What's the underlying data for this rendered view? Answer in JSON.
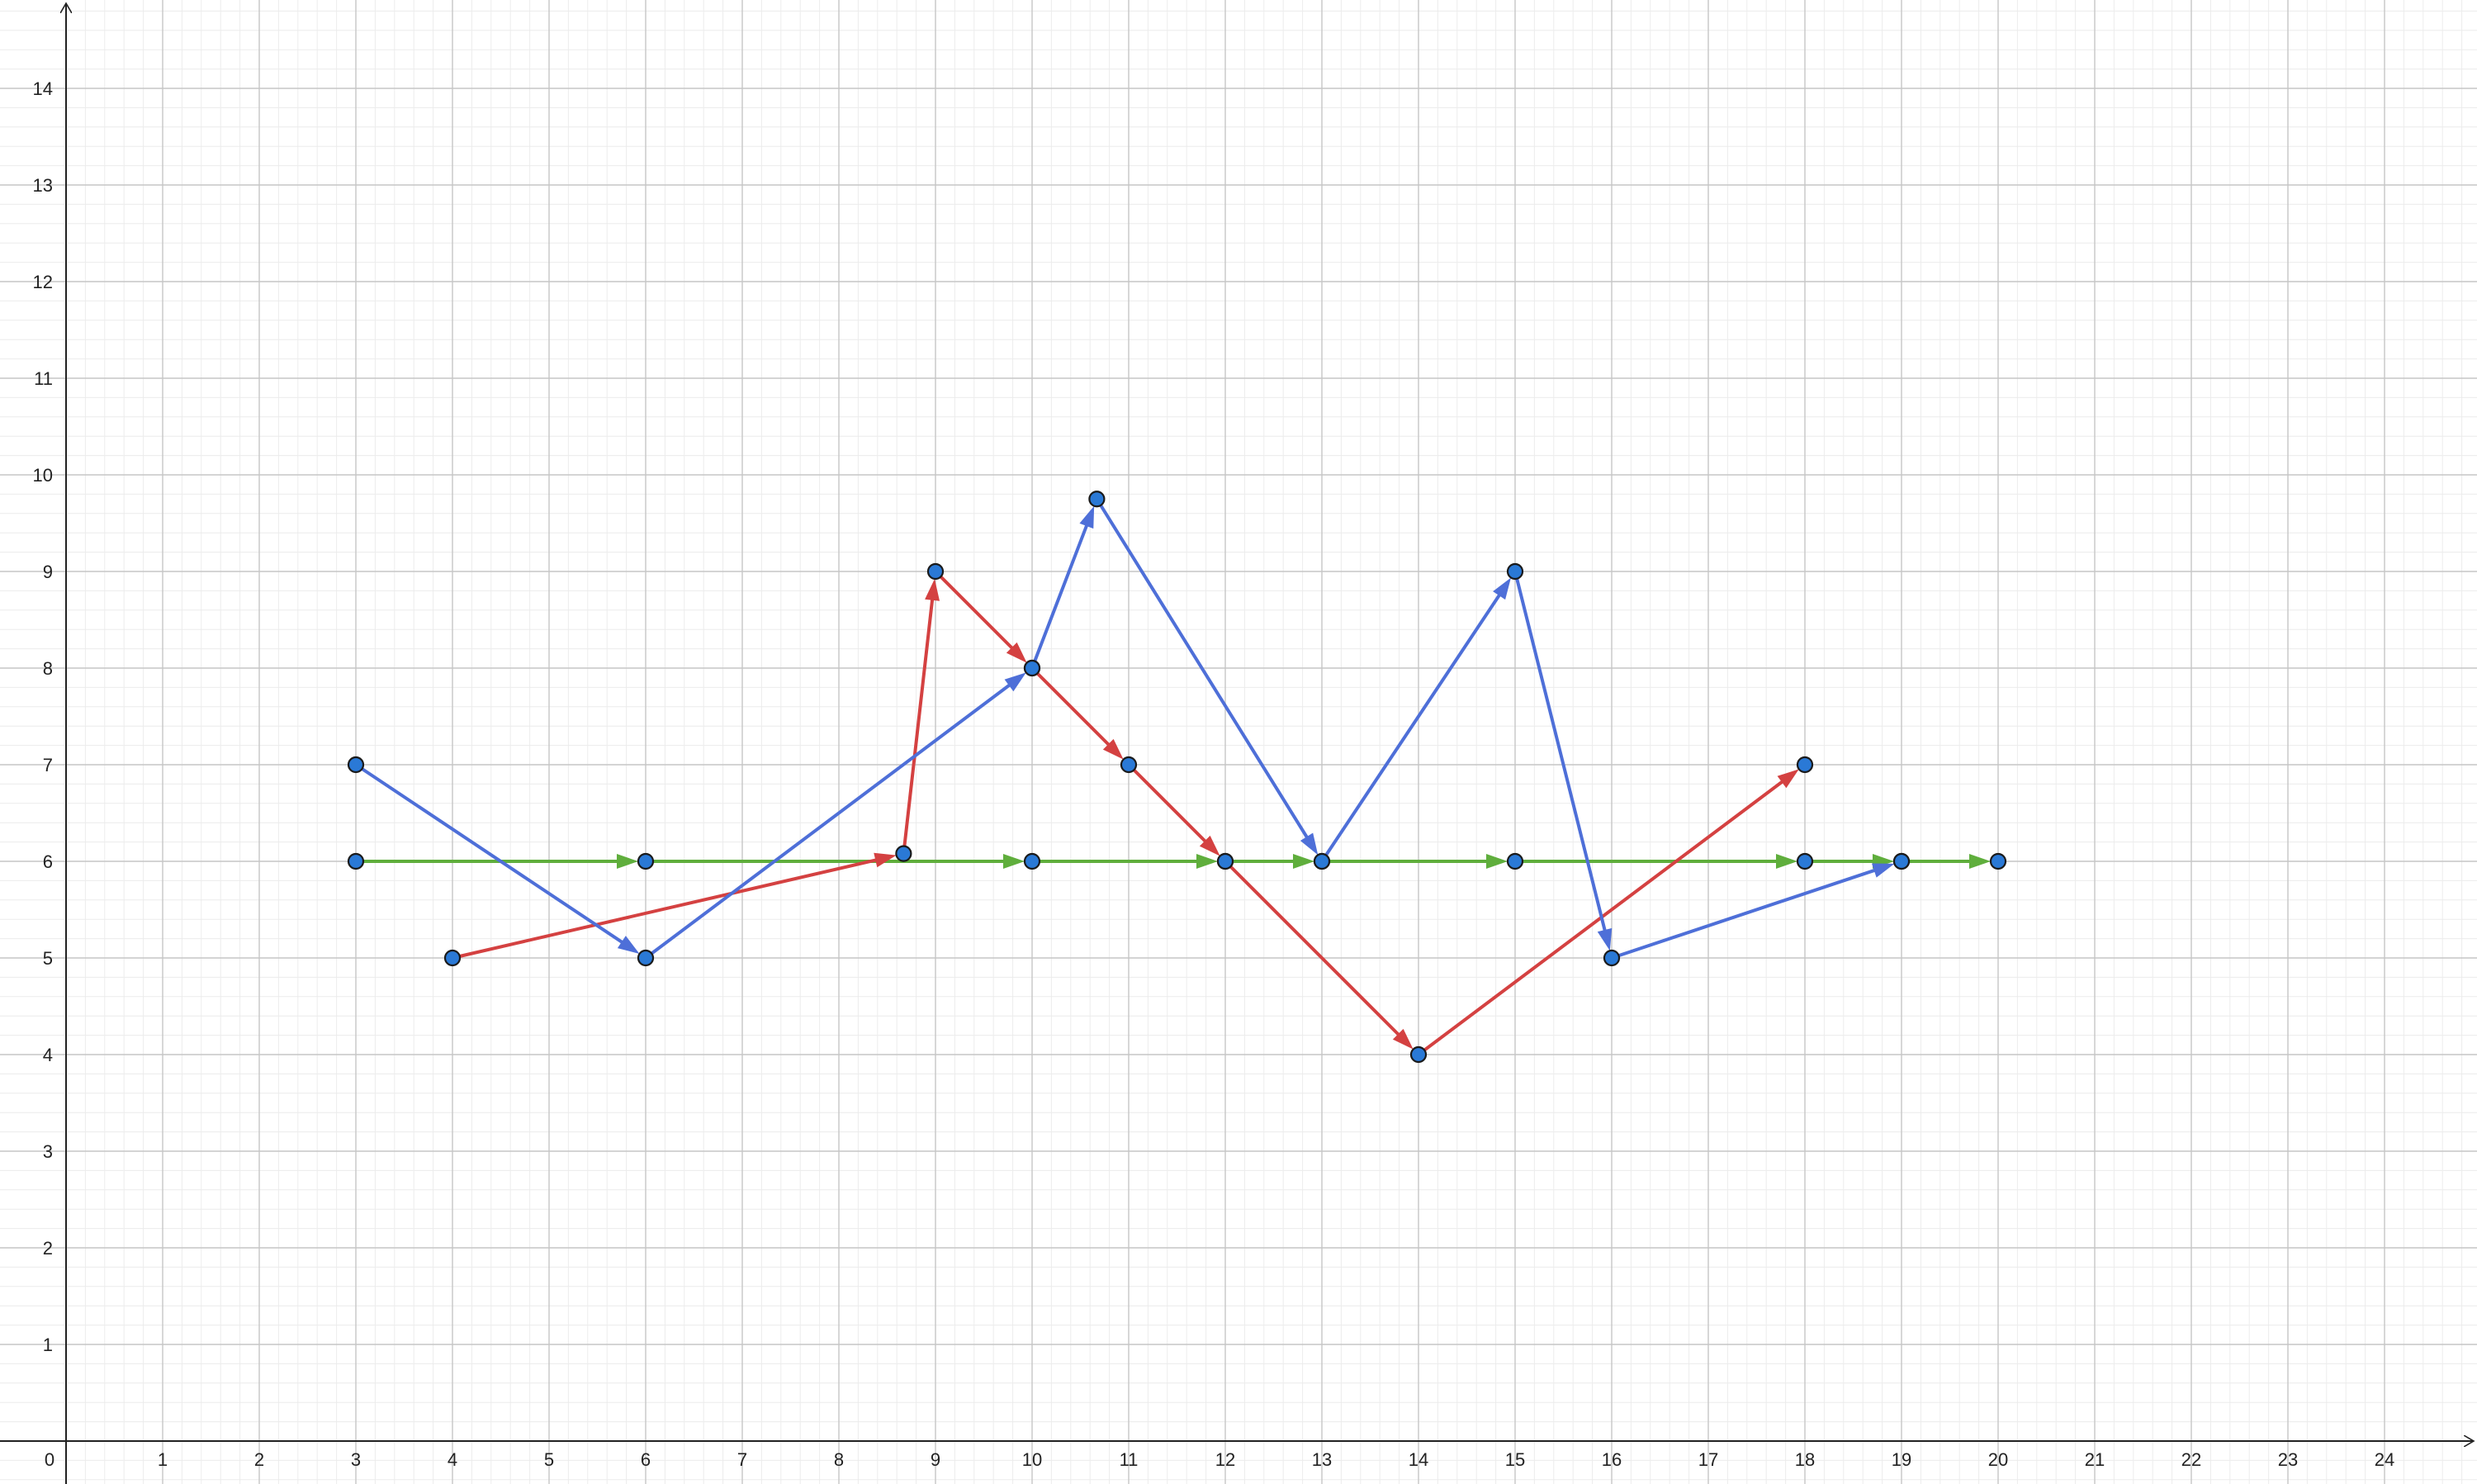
{
  "chart_data": {
    "type": "line",
    "title": "",
    "xlabel": "",
    "ylabel": "",
    "xlim": [
      0,
      25.6
    ],
    "ylim": [
      -0.4,
      14.9
    ],
    "x_ticks": [
      "0",
      "1",
      "2",
      "3",
      "4",
      "5",
      "6",
      "7",
      "8",
      "9",
      "10",
      "11",
      "12",
      "13",
      "14",
      "15",
      "16",
      "17",
      "18",
      "19",
      "20",
      "21",
      "22",
      "23",
      "24"
    ],
    "y_ticks": [
      "1",
      "2",
      "3",
      "4",
      "5",
      "6",
      "7",
      "8",
      "9",
      "10",
      "11",
      "12",
      "13",
      "14"
    ],
    "grid": true,
    "minor_grid_step": 0.2,
    "series": [
      {
        "color": "#5fae3c",
        "points": [
          [
            3,
            6
          ],
          [
            6,
            6
          ],
          [
            10,
            6
          ],
          [
            12,
            6
          ],
          [
            13,
            6
          ],
          [
            15,
            6
          ],
          [
            18,
            6
          ],
          [
            19,
            6
          ],
          [
            20,
            6
          ]
        ]
      },
      {
        "color": "#d44141",
        "points": [
          [
            4,
            5
          ],
          [
            8.67,
            6.08
          ],
          [
            9,
            9
          ],
          [
            10,
            8
          ],
          [
            11,
            7
          ],
          [
            12,
            6
          ],
          [
            14,
            4
          ],
          [
            18,
            7
          ]
        ]
      },
      {
        "color": "#4e6fd8",
        "points": [
          [
            3,
            7
          ],
          [
            6,
            5
          ],
          [
            10,
            8
          ],
          [
            10.67,
            9.75
          ],
          [
            13,
            6
          ],
          [
            15,
            9
          ],
          [
            16,
            5
          ],
          [
            19,
            6
          ]
        ]
      }
    ],
    "point_fill": "#2a79d6",
    "point_stroke": "#1a1a1a"
  }
}
